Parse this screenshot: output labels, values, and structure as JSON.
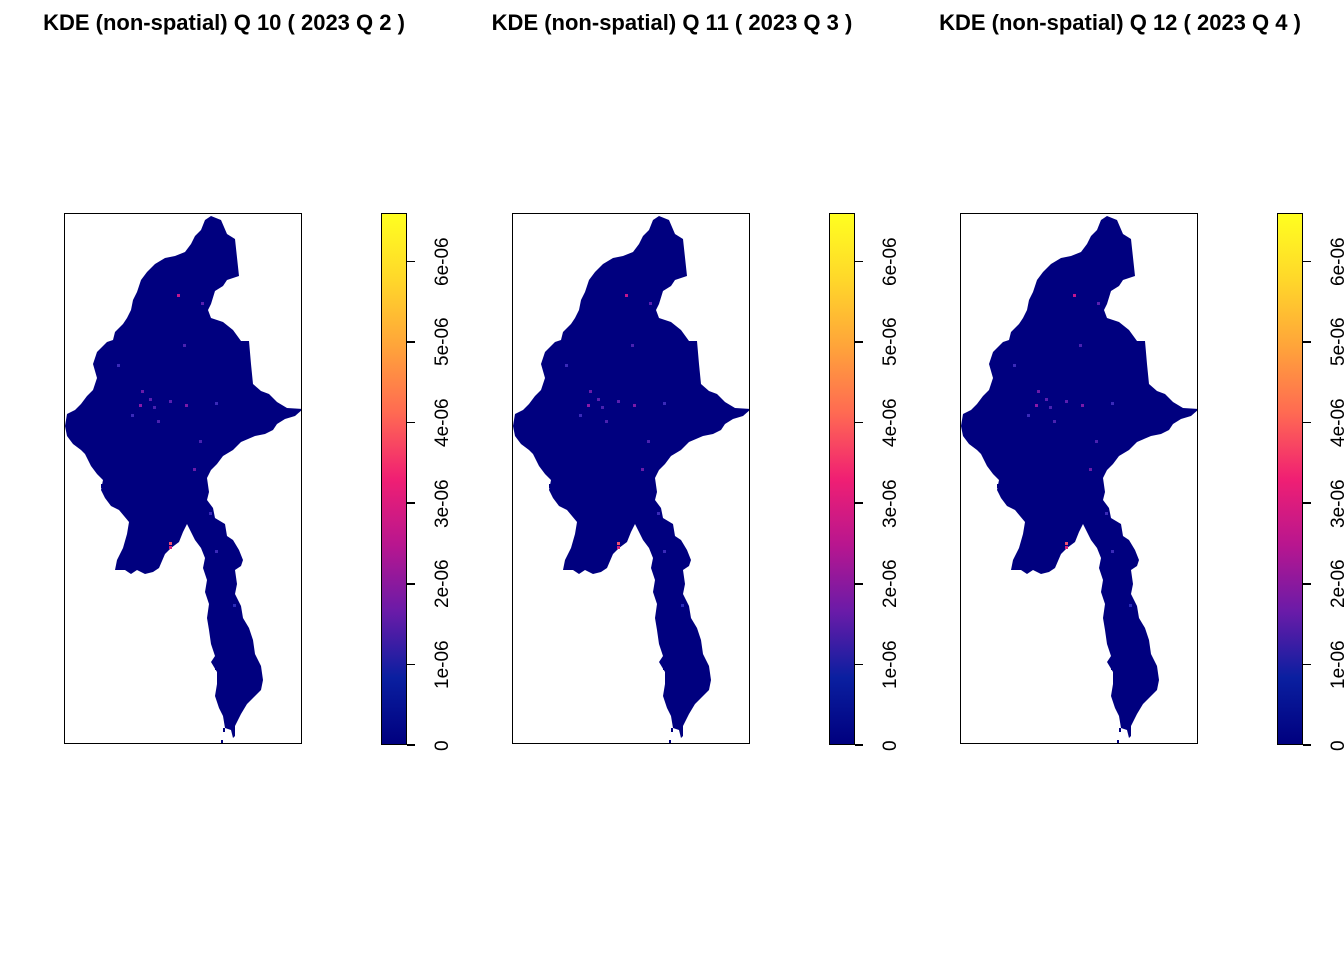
{
  "chart_data": [
    {
      "type": "heatmap",
      "title": "KDE (non-spatial) Q 10 ( 2023 Q 2 )",
      "legend": {
        "ticks": [
          "0",
          "1e-06",
          "2e-06",
          "3e-06",
          "4e-06",
          "5e-06",
          "6e-06"
        ],
        "range": [
          0,
          6.6e-06
        ],
        "placement": "right"
      },
      "colormap": [
        "#00007f",
        "#0a1fa0",
        "#6a1ba8",
        "#b8168f",
        "#f01f73",
        "#ff6a52",
        "#ffa43a",
        "#ffd72a",
        "#ffff20"
      ],
      "grid": false
    },
    {
      "type": "heatmap",
      "title": "KDE (non-spatial) Q 11 ( 2023 Q 3 )",
      "legend": {
        "ticks": [
          "0",
          "1e-06",
          "2e-06",
          "3e-06",
          "4e-06",
          "5e-06",
          "6e-06"
        ],
        "range": [
          0,
          6.6e-06
        ],
        "placement": "right"
      },
      "colormap": [
        "#00007f",
        "#0a1fa0",
        "#6a1ba8",
        "#b8168f",
        "#f01f73",
        "#ff6a52",
        "#ffa43a",
        "#ffd72a",
        "#ffff20"
      ],
      "grid": false
    },
    {
      "type": "heatmap",
      "title": "KDE (non-spatial) Q 12 ( 2023 Q 4 )",
      "legend": {
        "ticks": [
          "0",
          "1e-06",
          "2e-06",
          "3e-06",
          "4e-06",
          "5e-06",
          "6e-06"
        ],
        "range": [
          0,
          6.6e-06
        ],
        "placement": "right"
      },
      "colormap": [
        "#00007f",
        "#0a1fa0",
        "#6a1ba8",
        "#b8168f",
        "#f01f73",
        "#ff6a52",
        "#ffa43a",
        "#ffd72a",
        "#ffff20"
      ],
      "grid": false
    }
  ]
}
